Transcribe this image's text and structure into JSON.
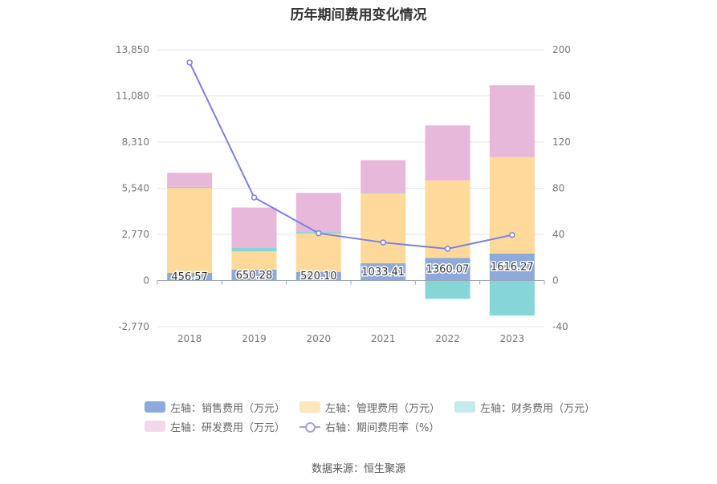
{
  "chart_data": {
    "type": "bar",
    "title": "历年期间费用变化情况",
    "categories": [
      "2018",
      "2019",
      "2020",
      "2021",
      "2022",
      "2023"
    ],
    "left_axis": {
      "ticks": [
        "13,850",
        "11,080",
        "8,310",
        "5,540",
        "2,770",
        "0",
        "-2,770"
      ],
      "ylim": [
        -2770,
        13850
      ]
    },
    "right_axis": {
      "ticks": [
        "200",
        "160",
        "120",
        "80",
        "40",
        "0",
        "-40"
      ],
      "ylim": [
        -40,
        200
      ]
    },
    "series": [
      {
        "name": "左轴：销售费用（万元）",
        "color": "#8ea9dc",
        "values": [
          456.57,
          650.28,
          520.1,
          1033.41,
          1360.07,
          1616.27
        ]
      },
      {
        "name": "左轴：管理费用（万元）",
        "color": "#ffd99a",
        "values": [
          5100,
          1100,
          2300,
          4200,
          4650,
          5800
        ]
      },
      {
        "name": "左轴：财务费用（万元）",
        "color": "#86d6d8",
        "values": [
          60,
          230,
          90,
          40,
          -1100,
          -2100
        ]
      },
      {
        "name": "左轴：研发费用（万元）",
        "color": "#e7b8d9",
        "values": [
          850,
          2400,
          2350,
          1950,
          3300,
          4300
        ]
      },
      {
        "name": "右轴：期间费用率（%）",
        "color": "#7b7fe8",
        "type": "line",
        "values": [
          189,
          72,
          41,
          33,
          27.5,
          39.5
        ]
      }
    ],
    "data_labels": [
      "456.57",
      "650.28",
      "520.10",
      "1033.41",
      "1360.07",
      "1616.27"
    ],
    "legend_position": "bottom",
    "grid": true
  },
  "source": "数据来源：恒生聚源"
}
